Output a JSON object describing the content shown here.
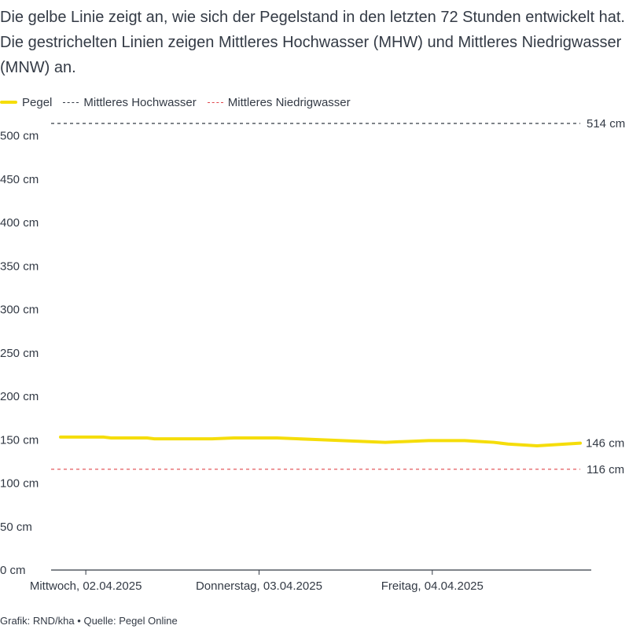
{
  "intro": "Die gelbe Linie zeigt an, wie sich der Pegelstand in den letzten 72 Stunden entwickelt hat. Die gestrichelten Linien zeigen Mittleres Hochwasser (MHW) und Mittleres Niedrigwasser (MNW) an.",
  "legend": {
    "pegel": "Pegel",
    "mhw": "Mittleres Hochwasser",
    "mnw": "Mittleres Niedrigwasser"
  },
  "colors": {
    "pegel": "#f5dd0a",
    "mhw": "#333a45",
    "mnw": "#e0474c",
    "text": "#333a45",
    "axis": "#333a45"
  },
  "footer": {
    "credit": "Grafik: RND/kha",
    "separator": "•",
    "source": "Quelle: Pegel Online"
  },
  "chart_data": {
    "type": "line",
    "title": "",
    "xlabel": "",
    "ylabel": "",
    "ylim": [
      0,
      520
    ],
    "xlim_hours": [
      0,
      72
    ],
    "y_ticks": [
      0,
      50,
      100,
      150,
      200,
      250,
      300,
      350,
      400,
      450,
      500
    ],
    "y_tick_labels": [
      "0 cm",
      "50 cm",
      "100 cm",
      "150 cm",
      "200 cm",
      "250 cm",
      "300 cm",
      "350 cm",
      "400 cm",
      "450 cm",
      "500 cm"
    ],
    "x_ticks": [
      {
        "hour": 3.5,
        "label": "Mittwoch, 02.04.2025"
      },
      {
        "hour": 27.5,
        "label": "Donnerstag, 03.04.2025"
      },
      {
        "hour": 51.5,
        "label": "Freitag, 04.04.2025"
      }
    ],
    "series": [
      {
        "name": "Pegel",
        "x": [
          0,
          3,
          6,
          7,
          9,
          12,
          13,
          15,
          18,
          21,
          24,
          27,
          30,
          33,
          36,
          39,
          42,
          45,
          48,
          51,
          54,
          56,
          58,
          60,
          62,
          64,
          66,
          68,
          70,
          72
        ],
        "y": [
          153,
          153,
          153,
          152,
          152,
          152,
          151,
          151,
          151,
          151,
          152,
          152,
          152,
          151,
          150,
          149,
          148,
          147,
          148,
          149,
          149,
          149,
          148,
          147,
          145,
          144,
          143,
          144,
          145,
          146
        ],
        "end_label": "146 cm"
      }
    ],
    "reference_lines": [
      {
        "name": "Mittleres Hochwasser",
        "value": 514,
        "label": "514 cm",
        "style": "dashed"
      },
      {
        "name": "Mittleres Niedrigwasser",
        "value": 116,
        "label": "116 cm",
        "style": "dashed"
      }
    ]
  }
}
